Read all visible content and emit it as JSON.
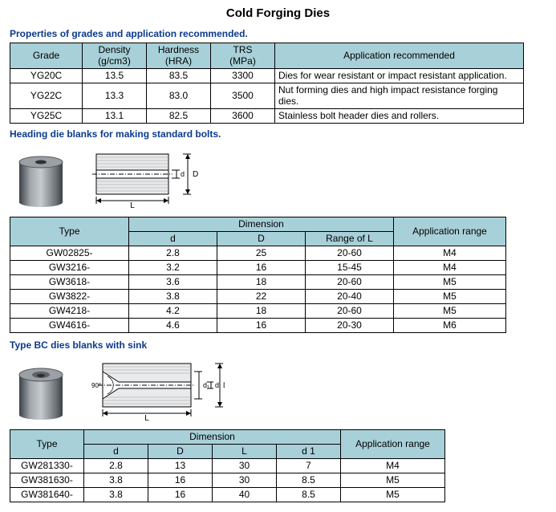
{
  "title": "Cold Forging Dies",
  "section1_header": "Properties of grades and application recommended.",
  "t1": {
    "cols": {
      "grade": "Grade",
      "density": "Density\n(g/cm3)",
      "hardness": "Hardness\n(HRA)",
      "trs": "TRS\n(MPa)",
      "app": "Application recommended"
    },
    "col_widths": {
      "grade": 90,
      "density": 80,
      "hardness": 80,
      "trs": 80,
      "app": 310
    },
    "rows": [
      {
        "grade": "YG20C",
        "density": "13.5",
        "hardness": "83.5",
        "trs": "3300",
        "app": "Dies for wear resistant or impact resistant application."
      },
      {
        "grade": "YG22C",
        "density": "13.3",
        "hardness": "83.0",
        "trs": "3500",
        "app": "Nut forming dies and high impact resistance forging dies."
      },
      {
        "grade": "YG25C",
        "density": "13.1",
        "hardness": "82.5",
        "trs": "3600",
        "app": "Stainless bolt header dies and rollers."
      }
    ]
  },
  "section2_header": "Heading die blanks for making standard bolts.",
  "t2": {
    "cols": {
      "type": "Type",
      "dim": "Dimension",
      "d": "d",
      "D": "D",
      "range": "Range of L",
      "app": "Application range"
    },
    "col_widths": {
      "type": 148,
      "d": 110,
      "D": 110,
      "range": 110,
      "app": 140
    },
    "rows": [
      {
        "type": "GW02825-",
        "d": "2.8",
        "D": "25",
        "range": "20-60",
        "app": "M4"
      },
      {
        "type": "GW3216-",
        "d": "3.2",
        "D": "16",
        "range": "15-45",
        "app": "M4"
      },
      {
        "type": "GW3618-",
        "d": "3.6",
        "D": "18",
        "range": "20-60",
        "app": "M5"
      },
      {
        "type": "GW3822-",
        "d": "3.8",
        "D": "22",
        "range": "20-40",
        "app": "M5"
      },
      {
        "type": "GW4218-",
        "d": "4.2",
        "D": "18",
        "range": "20-60",
        "app": "M5"
      },
      {
        "type": "GW4616-",
        "d": "4.6",
        "D": "16",
        "range": "20-30",
        "app": "M6"
      }
    ]
  },
  "section3_header": "Type BC dies blanks with sink",
  "t3": {
    "cols": {
      "type": "Type",
      "dim": "Dimension",
      "d": "d",
      "D": "D",
      "L": "L",
      "d1": "d 1",
      "app": "Application range"
    },
    "col_widths": {
      "type": 92,
      "d": 80,
      "D": 80,
      "L": 80,
      "d1": 80,
      "app": 130,
      "extra": 50
    },
    "rows": [
      {
        "type": "GW281330-",
        "d": "2.8",
        "D": "13",
        "L": "30",
        "d1": "7",
        "app": "M4"
      },
      {
        "type": "GW381630-",
        "d": "3.8",
        "D": "16",
        "L": "30",
        "d1": "8.5",
        "app": "M5"
      },
      {
        "type": "GW381640-",
        "d": "3.8",
        "D": "16",
        "L": "40",
        "d1": "8.5",
        "app": "M5"
      }
    ]
  },
  "colors": {
    "header_bg": "#a8d0d8",
    "subtitle": "#0b3a8c",
    "border": "#000000",
    "cyl_dark": "#555c60",
    "cyl_light": "#8d9296",
    "hatch": "#b8bcc0"
  },
  "diagram_labels": {
    "L": "L",
    "D": "D",
    "d": "d",
    "d1": "d₁",
    "angle": "90°"
  }
}
